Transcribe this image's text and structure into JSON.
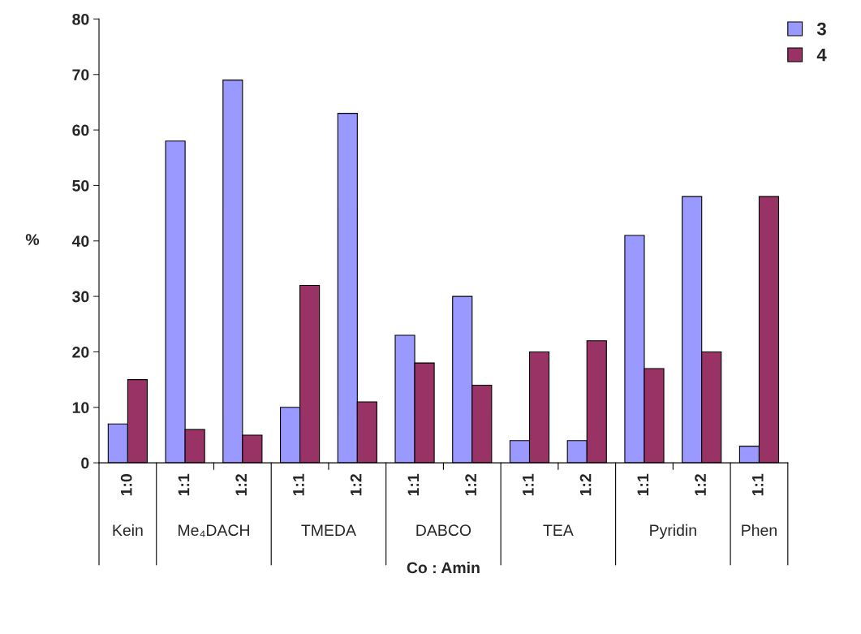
{
  "chart_data": {
    "type": "bar",
    "xlabel": "Co : Amin",
    "ylabel": "%",
    "categories": [
      "1:0",
      "1:1",
      "1:2",
      "1:1",
      "1:2",
      "1:1",
      "1:2",
      "1:1",
      "1:2",
      "1:1",
      "1:2",
      "1:1"
    ],
    "series": [
      {
        "name": "3",
        "color": "#9999ff",
        "values": [
          7,
          58,
          69,
          10,
          63,
          23,
          30,
          4,
          4,
          41,
          48,
          3
        ]
      },
      {
        "name": "4",
        "color": "#993366",
        "values": [
          15,
          6,
          5,
          32,
          11,
          18,
          14,
          20,
          22,
          17,
          20,
          48
        ]
      }
    ],
    "ylim": [
      0,
      80
    ],
    "yticks": [
      0,
      10,
      20,
      30,
      40,
      50,
      60,
      70,
      80
    ],
    "grid": false,
    "legend": "top right",
    "annotations": [
      "Kein",
      "Me₄DACH",
      "TMEDA",
      "DABCO",
      "TEA",
      "Pyridin",
      "Phen"
    ]
  }
}
